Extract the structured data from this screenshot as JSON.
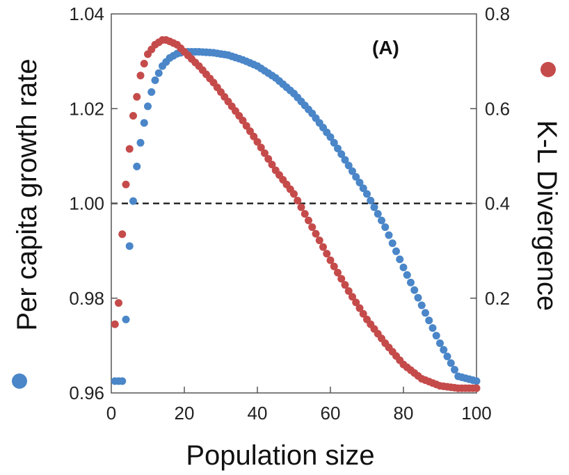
{
  "chart_data": {
    "type": "scatter",
    "panel_label": "(A)",
    "xlabel": "Population size",
    "ylabel_left": "Per capita growth rate",
    "ylabel_right": "K-L Divergence",
    "xlim": [
      0,
      100
    ],
    "ylim_left": [
      0.96,
      1.04
    ],
    "ylim_right": [
      0.0,
      0.8
    ],
    "x_ticks": [
      "0",
      "20",
      "40",
      "60",
      "80",
      "100"
    ],
    "y_ticks_left": [
      "0.96",
      "0.98",
      "1.00",
      "1.02",
      "1.04"
    ],
    "y_ticks_right": [
      "0.2",
      "0.4",
      "0.6",
      "0.8"
    ],
    "reference_line": {
      "axis": "left",
      "value": 1.0,
      "style": "dashed"
    },
    "series": [
      {
        "name": "Per capita growth rate",
        "axis": "left",
        "color": "#4a86c8",
        "x": [
          1,
          2,
          3,
          4,
          5,
          6,
          7,
          8,
          9,
          10,
          11,
          12,
          14,
          16,
          18,
          20,
          24,
          28,
          32,
          36,
          40,
          45,
          50,
          55,
          60,
          65,
          70,
          75,
          80,
          85,
          90,
          95,
          100
        ],
        "values": [
          0.9625,
          0.9625,
          0.9625,
          0.9755,
          0.991,
          1.0005,
          1.0078,
          1.0128,
          1.017,
          1.0205,
          1.0235,
          1.026,
          1.029,
          1.0307,
          1.0316,
          1.032,
          1.032,
          1.0318,
          1.0313,
          1.0303,
          1.029,
          1.0265,
          1.0232,
          1.019,
          1.014,
          1.008,
          1.002,
          0.995,
          0.9865,
          0.9785,
          0.9705,
          0.9635,
          0.9625
        ]
      },
      {
        "name": "K-L Divergence",
        "axis": "right",
        "color": "#c54b4b",
        "x": [
          1,
          2,
          3,
          4,
          5,
          6,
          7,
          8,
          9,
          10,
          11,
          12,
          13,
          14,
          15,
          16,
          18,
          20,
          24,
          28,
          32,
          36,
          40,
          45,
          50,
          55,
          60,
          65,
          70,
          75,
          80,
          85,
          90,
          95,
          100
        ],
        "values": [
          0.145,
          0.19,
          0.335,
          0.44,
          0.515,
          0.585,
          0.625,
          0.67,
          0.695,
          0.715,
          0.725,
          0.735,
          0.74,
          0.745,
          0.745,
          0.742,
          0.735,
          0.72,
          0.69,
          0.655,
          0.615,
          0.575,
          0.53,
          0.47,
          0.42,
          0.35,
          0.28,
          0.215,
          0.155,
          0.105,
          0.06,
          0.03,
          0.015,
          0.01,
          0.01
        ]
      }
    ]
  }
}
